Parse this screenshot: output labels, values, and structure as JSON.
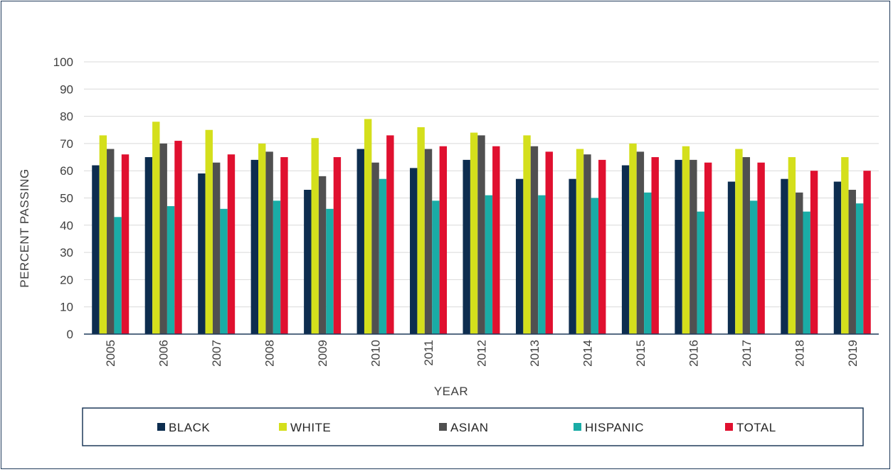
{
  "chart_data": {
    "type": "bar",
    "title": "",
    "xlabel": "YEAR",
    "ylabel": "PERCENT PASSING",
    "ylim": [
      0,
      100
    ],
    "yticks": [
      "0",
      "10",
      "20",
      "30",
      "40",
      "50",
      "60",
      "70",
      "80",
      "90",
      "100"
    ],
    "grid": true,
    "legend_position": "bottom",
    "categories": [
      "2005",
      "2006",
      "2007",
      "2008",
      "2009",
      "2010",
      "2011",
      "2012",
      "2013",
      "2014",
      "2015",
      "2016",
      "2017",
      "2018",
      "2019"
    ],
    "series": [
      {
        "name": "BLACK",
        "color": "#0d2d4f",
        "values": [
          62,
          65,
          59,
          64,
          53,
          68,
          61,
          64,
          57,
          57,
          62,
          64,
          56,
          57,
          56
        ]
      },
      {
        "name": "WHITE",
        "color": "#d4df1c",
        "values": [
          73,
          78,
          75,
          70,
          72,
          79,
          76,
          74,
          73,
          68,
          70,
          69,
          68,
          65,
          65
        ]
      },
      {
        "name": "ASIAN",
        "color": "#505050",
        "values": [
          68,
          70,
          63,
          67,
          58,
          63,
          68,
          73,
          69,
          66,
          67,
          64,
          65,
          52,
          53
        ]
      },
      {
        "name": "HISPANIC",
        "color": "#1aaca6",
        "values": [
          43,
          47,
          46,
          49,
          46,
          57,
          49,
          51,
          51,
          50,
          52,
          45,
          49,
          45,
          48
        ]
      },
      {
        "name": "TOTAL",
        "color": "#e0102f",
        "values": [
          66,
          71,
          66,
          65,
          65,
          73,
          69,
          69,
          67,
          64,
          65,
          63,
          63,
          60,
          60
        ]
      }
    ]
  }
}
